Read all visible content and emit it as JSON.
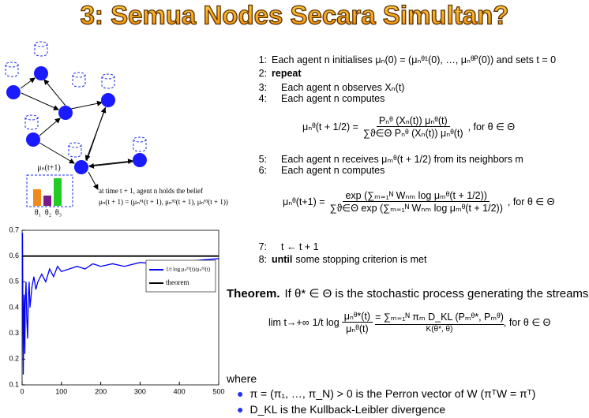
{
  "title": "3: Semua Nodes Secara Simultan?",
  "diagram": {
    "belief_label": "μₙ(t+1)",
    "bar_labels": [
      "θ₁",
      "θ₂",
      "θ₃"
    ],
    "annotation": [
      "at time t + 1, agent n holds the belief",
      "μₙ(t + 1) = (μₙᶿ¹(t + 1), μₙᶿ²(t + 1), μₙᶿ³(t + 1))"
    ]
  },
  "algorithm": {
    "lines": [
      {
        "number": "1:",
        "text": "Each agent n initialises μₙ(0) = (μₙᶿ¹(0), …, μₙᶿᴾ(0)) and sets t = 0"
      },
      {
        "number": "2:",
        "keyword": "repeat"
      },
      {
        "number": "3:",
        "text": "Each agent n observes Xₙ(t)"
      },
      {
        "number": "4:",
        "text": "Each agent n computes"
      },
      {
        "number": "5:",
        "text": "Each agent n receives μₘᶿ(t + 1/2) from its neighbors m"
      },
      {
        "number": "6:",
        "text": "Each agent n computes"
      },
      {
        "number": "7:",
        "text": "t ← t + 1"
      },
      {
        "number": "8:",
        "keyword": "until",
        "text": "some stopping criterion is met"
      }
    ],
    "equations": [
      {
        "lhs": "μₙᶿ(t + 1/2) =",
        "numerator": "Pₙᶿ (Xₙ(t)) μₙᶿ(t)",
        "denominator": "∑ϑ∈Θ Pₙᶿ (Xₙ(t)) μₙᶿ(t)",
        "condition": ",   for θ ∈ Θ"
      },
      {
        "lhs": "μₙᶿ(t+1) =",
        "numerator": "exp (∑ₘ₌₁ᴺ Wₙₘ log μₘᶿ(t + 1/2))",
        "denominator": "∑ϑ∈Θ exp (∑ₘ₌₁ᴺ Wₙₘ log μₘᶿ(t + 1/2))",
        "condition": ",   for θ ∈ Θ"
      }
    ]
  },
  "theorem": {
    "label": "Theorem.",
    "text": "If θ* ∈ Θ is the stochastic process generating the streams,",
    "limit": "lim t→+∞",
    "factor": "1/t log",
    "numerator": "μₙᶿ*(t)",
    "denominator": "μₙᶿ(t)",
    "sum": "= ∑ₘ₌₁ᴺ πₘ D_KL (Pₘᶿ*, Pₘᶿ)",
    "underbrace": "K(θ*, θ)",
    "condition": ",   for θ ∈ Θ",
    "where": "where",
    "bullets": [
      "π = (π₁, …, π_N) > 0 is the Perron vector of W (πᵀW = πᵀ)",
      "D_KL is the Kullback-Leibler divergence"
    ]
  },
  "chart_data": {
    "type": "line",
    "xlim": [
      0,
      500
    ],
    "xticks": [
      0,
      100,
      200,
      300,
      400,
      500
    ],
    "ylim": [
      0.1,
      0.7
    ],
    "yticks": [
      0.1,
      0.2,
      0.3,
      0.4,
      0.5,
      0.6,
      0.7
    ],
    "legend": "center right",
    "x": [
      1,
      2,
      3,
      4,
      5,
      6,
      7,
      8,
      10,
      12,
      14,
      16,
      18,
      20,
      25,
      30,
      35,
      40,
      50,
      60,
      70,
      80,
      90,
      100,
      120,
      140,
      160,
      180,
      200,
      230,
      260,
      300,
      340,
      380,
      420,
      460,
      500
    ],
    "series": [
      {
        "name": "1/t log μₙᶿ¹(t)/μₙᶿ²(t)",
        "color": "#0000ff",
        "values": [
          0.69,
          0.4,
          0.14,
          0.3,
          0.45,
          0.32,
          0.22,
          0.42,
          0.5,
          0.35,
          0.28,
          0.45,
          0.5,
          0.4,
          0.48,
          0.52,
          0.47,
          0.5,
          0.53,
          0.5,
          0.55,
          0.52,
          0.56,
          0.54,
          0.55,
          0.56,
          0.55,
          0.57,
          0.56,
          0.57,
          0.56,
          0.575,
          0.57,
          0.58,
          0.58,
          0.585,
          0.59
        ]
      },
      {
        "name": "theorem",
        "color": "#000000",
        "x": [
          0,
          500
        ],
        "values": [
          0.6,
          0.6
        ]
      }
    ]
  }
}
